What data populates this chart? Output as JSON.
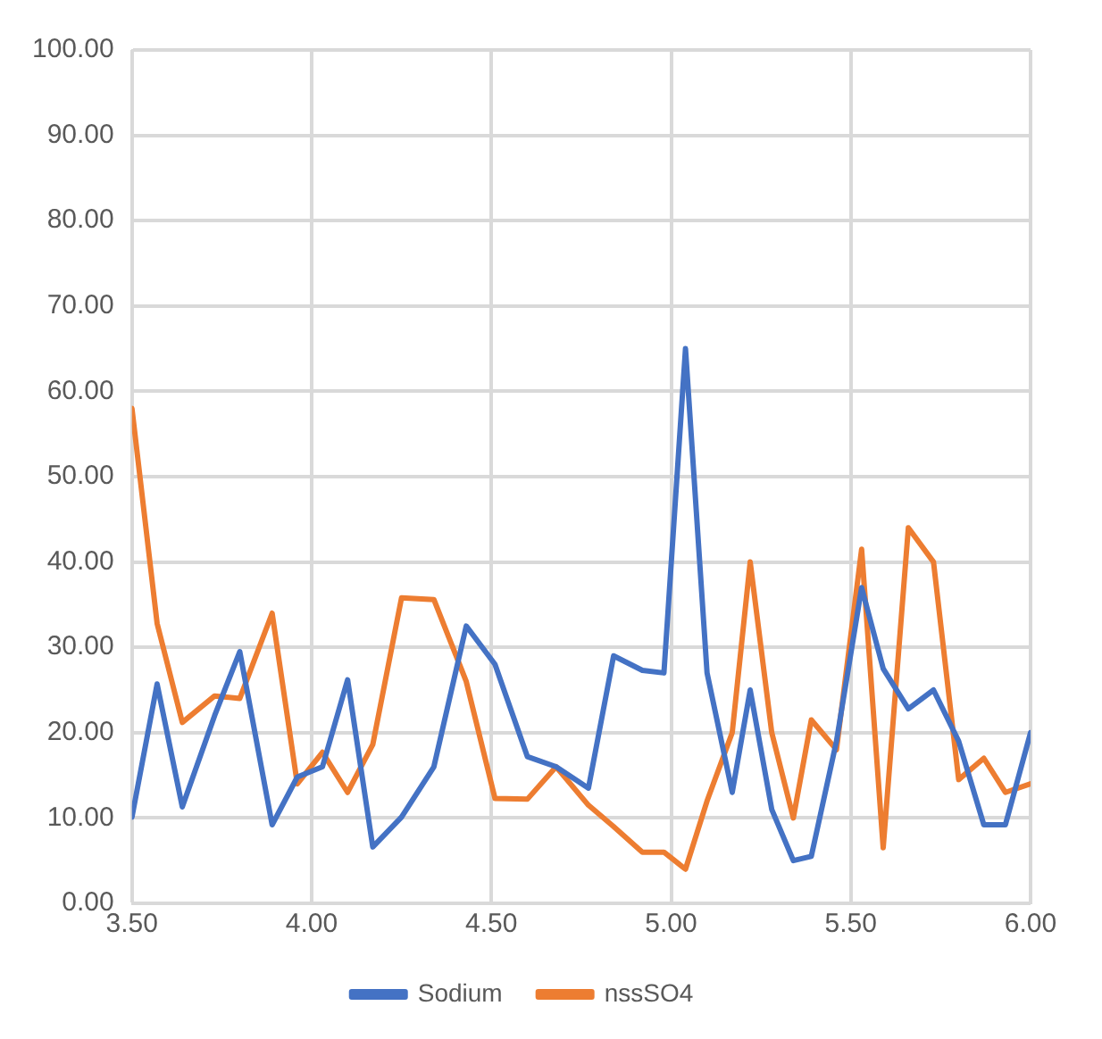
{
  "chart_data": {
    "type": "line",
    "x": [
      3.5,
      3.57,
      3.64,
      3.73,
      3.8,
      3.89,
      3.96,
      4.03,
      4.1,
      4.17,
      4.25,
      4.34,
      4.43,
      4.51,
      4.6,
      4.68,
      4.77,
      4.84,
      4.92,
      4.98,
      5.04,
      5.1,
      5.17,
      5.22,
      5.28,
      5.34,
      5.39,
      5.46,
      5.53,
      5.59,
      5.66,
      5.73,
      5.8,
      5.87,
      5.93,
      6.0
    ],
    "series": [
      {
        "name": "Sodium",
        "color": "#4472c4",
        "values": [
          10.1,
          25.7,
          11.3,
          22,
          29.5,
          9.2,
          14.8,
          16,
          26.2,
          6.6,
          10.1,
          16,
          32.5,
          28,
          17.2,
          16,
          13.5,
          29,
          27.3,
          27,
          65,
          27,
          13,
          25,
          11,
          5,
          5.5,
          19,
          37,
          27.5,
          22.8,
          25,
          19,
          9.2,
          9.2,
          20
        ]
      },
      {
        "name": "nssSO4",
        "color": "#ed7d31",
        "values": [
          58,
          32.8,
          21.2,
          24.3,
          24,
          34,
          14,
          17.7,
          13,
          18.6,
          35.8,
          35.6,
          26,
          12.3,
          12.2,
          16,
          11.5,
          9,
          6,
          6,
          4,
          12,
          20,
          40,
          20,
          10,
          21.5,
          18,
          41.5,
          6.5,
          44,
          40,
          14.5,
          17,
          13,
          14
        ]
      }
    ],
    "xlim": [
      3.5,
      6.0
    ],
    "xticks": [
      {
        "value": 3.5,
        "label": "3.50"
      },
      {
        "value": 4.0,
        "label": "4.00"
      },
      {
        "value": 4.5,
        "label": "4.50"
      },
      {
        "value": 5.0,
        "label": "5.00"
      },
      {
        "value": 5.5,
        "label": "5.50"
      },
      {
        "value": 6.0,
        "label": "6.00"
      }
    ],
    "ylim": [
      0,
      100
    ],
    "yticks": [
      {
        "value": 0,
        "label": "0.00"
      },
      {
        "value": 10,
        "label": "10.00"
      },
      {
        "value": 20,
        "label": "20.00"
      },
      {
        "value": 30,
        "label": "30.00"
      },
      {
        "value": 40,
        "label": "40.00"
      },
      {
        "value": 50,
        "label": "50.00"
      },
      {
        "value": 60,
        "label": "60.00"
      },
      {
        "value": 70,
        "label": "70.00"
      },
      {
        "value": 80,
        "label": "80.00"
      },
      {
        "value": 90,
        "label": "90.00"
      },
      {
        "value": 100,
        "label": "100.00"
      }
    ],
    "grid": true,
    "legend": "bottom",
    "marker": "none",
    "line_style": "solid"
  }
}
